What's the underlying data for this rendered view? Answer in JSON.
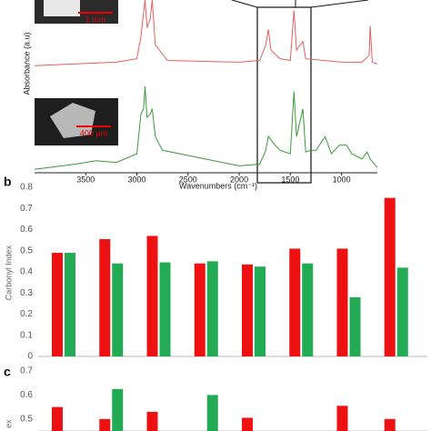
{
  "chart_data": [
    {
      "type": "line",
      "x_label": "Wavenumbers (cm⁻¹)",
      "y_label": "Absorbance (a.u)",
      "annotations": [
        "1 mm",
        "400 µm"
      ],
      "xlim": [
        4000,
        650
      ],
      "xticks": [
        3500,
        3000,
        2500,
        2000,
        1500,
        1000
      ],
      "ylim": [
        0,
        100
      ],
      "series": [
        {
          "color": "#e06060",
          "x": [
            4000,
            3600,
            3200,
            3000,
            2960,
            2920,
            2900,
            2870,
            2850,
            2820,
            2700,
            2000,
            1800,
            1740,
            1715,
            1690,
            1600,
            1500,
            1465,
            1440,
            1378,
            1350,
            1000,
            800,
            730,
            720,
            700,
            650
          ],
          "values": [
            62,
            63,
            64,
            66,
            79,
            100,
            84,
            89,
            100,
            74,
            65,
            64,
            65,
            74,
            83,
            71,
            66,
            65,
            94,
            71,
            76,
            66,
            64,
            64,
            68,
            85,
            64,
            63
          ]
        },
        {
          "color": "#3a9a3a",
          "x": [
            4000,
            3600,
            3400,
            3200,
            3000,
            2960,
            2935,
            2920,
            2900,
            2870,
            2850,
            2820,
            2750,
            2000,
            1800,
            1740,
            1715,
            1650,
            1600,
            1500,
            1465,
            1440,
            1378,
            1350,
            1300,
            1250,
            1160,
            1100,
            1020,
            950,
            900,
            800,
            750,
            720,
            650
          ],
          "values": [
            2,
            5,
            7,
            6,
            11,
            34,
            37,
            50,
            32,
            34,
            37,
            21,
            13,
            4,
            5,
            13,
            21,
            16,
            13,
            11,
            47,
            21,
            37,
            12,
            13,
            13,
            21,
            11,
            16,
            16,
            11,
            8,
            12,
            8,
            3
          ]
        }
      ]
    },
    {
      "type": "bar",
      "panel_label": "b",
      "y_label": "Carbonyl Index",
      "ylim": [
        0,
        0.8
      ],
      "yticks": [
        0,
        0.1,
        0.2,
        0.3,
        0.4,
        0.5,
        0.6,
        0.7,
        0.8
      ],
      "series": [
        {
          "color": "#ee1111",
          "values": [
            0.49,
            0.555,
            0.57,
            0.44,
            0.435,
            0.51,
            0.51,
            0.75
          ]
        },
        {
          "color": "#22aa55",
          "values": [
            0.49,
            0.44,
            0.445,
            0.45,
            0.425,
            0.44,
            0.28,
            0.42
          ]
        }
      ]
    },
    {
      "type": "bar",
      "panel_label": "c",
      "y_label": "ex",
      "ylim": [
        0.45,
        0.7
      ],
      "yticks": [
        0.5,
        0.6,
        0.7
      ],
      "series": [
        {
          "color": "#ee1111",
          "values": [
            0.55,
            0.5,
            0.53,
            null,
            0.505,
            null,
            0.555,
            0.5
          ]
        },
        {
          "color": "#22aa55",
          "values": [
            null,
            0.625,
            null,
            0.6,
            null,
            null,
            null,
            null
          ]
        }
      ]
    }
  ]
}
